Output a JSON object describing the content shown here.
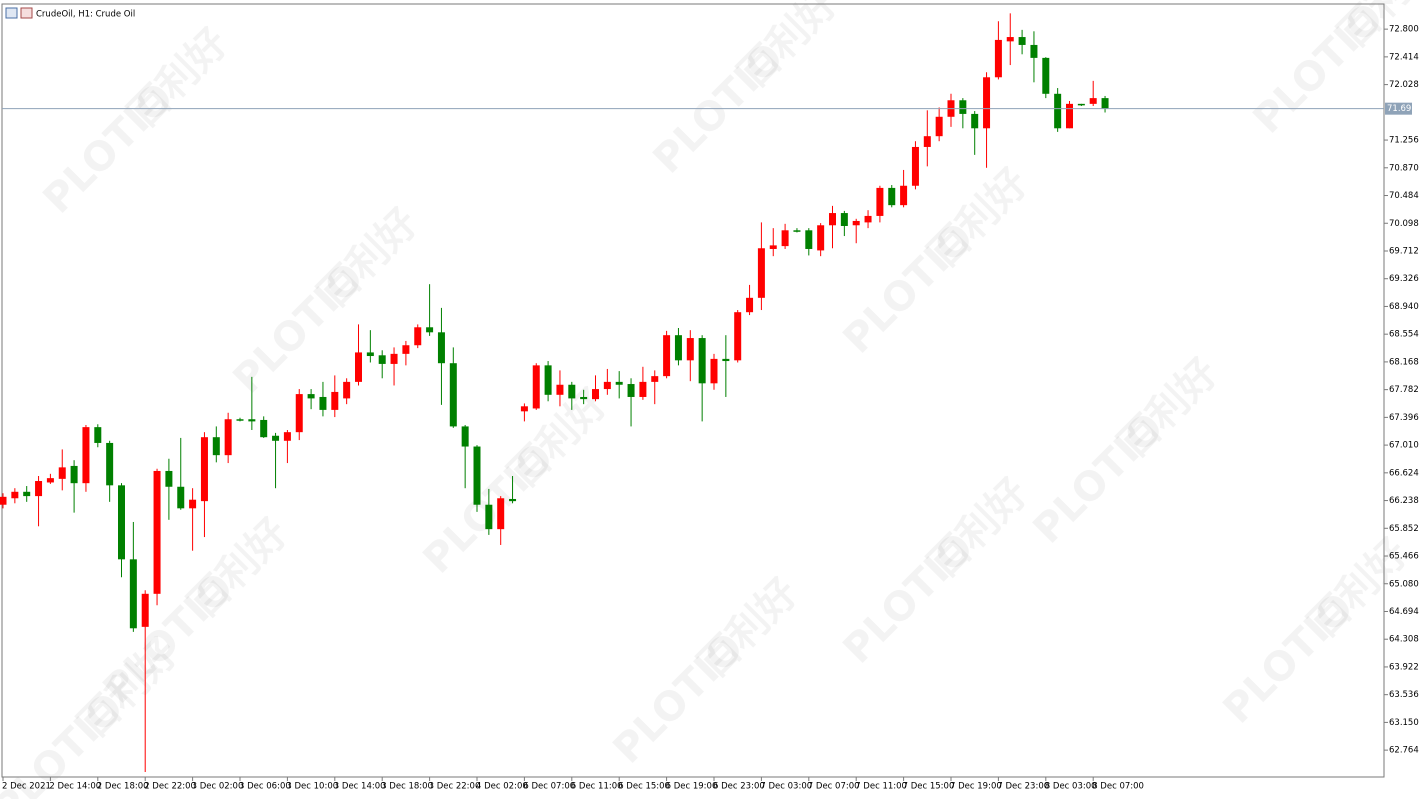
{
  "chart_data": {
    "type": "candlestick",
    "title": "CrudeOil, H1:  Crude Oil",
    "watermark": [
      "PLOTIO",
      "百利好"
    ],
    "up_color": "#ff0000",
    "down_color": "#008000",
    "price_line_color": "#8fa3b8",
    "current_price": 71.693,
    "ylim": [
      62.39,
      73.15
    ],
    "yticks": [
      {
        "value": 72.8,
        "label": "72.800"
      },
      72.414,
      72.028,
      71.256,
      {
        "value": 70.87,
        "label": "70.870"
      },
      70.484,
      70.098,
      69.712,
      69.326,
      {
        "value": 68.94,
        "label": "68.940"
      },
      68.554,
      68.168,
      67.782,
      67.396,
      {
        "value": 67.01,
        "label": "67.010"
      },
      66.624,
      66.238,
      65.852,
      65.466,
      {
        "value": 65.08,
        "label": "65.080"
      },
      64.694,
      64.308,
      63.922,
      63.536,
      {
        "value": 63.15,
        "label": "63.150"
      },
      62.764
    ],
    "categories": [
      "2 Dec 2021",
      null,
      null,
      null,
      "2 Dec 14:00",
      null,
      null,
      null,
      "2 Dec 18:00",
      null,
      null,
      null,
      "2 Dec 22:00",
      null,
      null,
      null,
      "3 Dec 02:00",
      null,
      null,
      null,
      "3 Dec 06:00",
      null,
      null,
      null,
      "3 Dec 10:00",
      null,
      null,
      null,
      "3 Dec 14:00",
      null,
      null,
      null,
      "3 Dec 18:00",
      null,
      null,
      null,
      "3 Dec 22:00",
      null,
      null,
      null,
      "4 Dec 02:00",
      null,
      null,
      null,
      "6 Dec 07:00",
      null,
      null,
      null,
      "6 Dec 11:00",
      null,
      null,
      null,
      "6 Dec 15:00",
      null,
      null,
      null,
      "6 Dec 19:00",
      null,
      null,
      null,
      "6 Dec 23:00",
      null,
      null,
      null,
      "7 Dec 03:00",
      null,
      null,
      null,
      "7 Dec 07:00",
      null,
      null,
      null,
      "7 Dec 11:00",
      null,
      null,
      null,
      "7 Dec 15:00",
      null,
      null,
      null,
      "7 Dec 19:00",
      null,
      null,
      null,
      "7 Dec 23:00",
      null,
      null,
      null,
      "8 Dec 03:00",
      null,
      null,
      null,
      "8 Dec 07:00",
      null
    ],
    "open": [
      66.18,
      66.27,
      66.36,
      66.3,
      66.49,
      66.54,
      66.72,
      66.48,
      67.26,
      67.04,
      66.45,
      65.42,
      64.48,
      64.94,
      66.65,
      66.43,
      66.13,
      66.23,
      67.12,
      66.87,
      67.37,
      67.37,
      67.36,
      67.14,
      67.07,
      67.19,
      67.72,
      67.68,
      67.5,
      67.66,
      67.89,
      68.3,
      68.26,
      68.14,
      68.28,
      68.4,
      68.65,
      68.58,
      68.15,
      67.27,
      66.99,
      66.18,
      65.84,
      66.26,
      67.48,
      67.52,
      68.12,
      67.71,
      67.85,
      67.68,
      67.65,
      67.79,
      67.89,
      67.86,
      67.68,
      67.89,
      67.97,
      68.54,
      68.19,
      68.5,
      67.87,
      68.21,
      68.19,
      68.86,
      69.06,
      69.74,
      69.78,
      70.0,
      70.0,
      69.72,
      70.07,
      70.24,
      70.07,
      70.11,
      70.2,
      70.59,
      70.35,
      70.62,
      71.16,
      71.31,
      71.58,
      71.81,
      71.62,
      71.42,
      72.13,
      72.63,
      72.69,
      72.58,
      72.4,
      71.9,
      71.42,
      71.76,
      71.76,
      71.84
    ],
    "high": [
      66.34,
      66.41,
      66.44,
      66.58,
      66.61,
      66.95,
      66.8,
      67.29,
      67.3,
      67.07,
      66.48,
      65.94,
      64.99,
      66.68,
      66.82,
      67.11,
      66.41,
      67.19,
      67.27,
      67.46,
      67.39,
      67.96,
      67.41,
      67.18,
      67.22,
      67.79,
      67.79,
      67.89,
      67.98,
      67.94,
      68.69,
      68.61,
      68.33,
      68.37,
      68.46,
      68.69,
      69.25,
      68.92,
      68.37,
      67.29,
      67.01,
      66.4,
      66.3,
      66.58,
      67.59,
      68.15,
      68.18,
      68.05,
      67.89,
      67.78,
      67.98,
      68.07,
      68.04,
      67.94,
      68.1,
      68.05,
      68.6,
      68.64,
      68.61,
      68.54,
      68.28,
      68.54,
      68.89,
      69.24,
      70.11,
      70.03,
      70.09,
      70.03,
      70.03,
      70.1,
      70.34,
      70.27,
      70.16,
      70.28,
      70.62,
      70.63,
      70.84,
      71.24,
      71.67,
      71.71,
      71.9,
      71.84,
      71.66,
      72.2,
      72.91,
      73.02,
      72.79,
      72.77,
      72.41,
      71.98,
      71.8,
      71.76,
      72.08,
      71.87
    ],
    "low": [
      66.13,
      66.2,
      66.22,
      65.88,
      66.47,
      66.38,
      66.07,
      66.36,
      66.98,
      66.22,
      65.17,
      64.41,
      62.46,
      64.78,
      65.97,
      66.11,
      65.54,
      65.73,
      66.77,
      66.76,
      67.34,
      67.22,
      67.11,
      66.41,
      66.76,
      67.08,
      67.51,
      67.41,
      67.4,
      67.58,
      67.84,
      68.16,
      67.94,
      67.84,
      68.12,
      68.36,
      68.53,
      67.57,
      67.25,
      66.41,
      66.08,
      65.76,
      65.62,
      66.2,
      67.34,
      67.5,
      67.62,
      67.55,
      67.5,
      67.58,
      67.62,
      67.71,
      67.66,
      67.27,
      67.64,
      67.58,
      67.94,
      68.12,
      67.9,
      67.34,
      67.78,
      67.68,
      68.16,
      68.82,
      68.89,
      69.64,
      69.74,
      69.97,
      69.65,
      69.64,
      69.75,
      69.92,
      69.82,
      70.03,
      70.11,
      70.32,
      70.32,
      70.57,
      70.89,
      71.24,
      71.44,
      71.42,
      71.05,
      70.87,
      72.1,
      72.3,
      72.45,
      72.06,
      71.84,
      71.37,
      71.42,
      71.73,
      71.73,
      71.64
    ],
    "close": [
      66.29,
      66.36,
      66.3,
      66.51,
      66.55,
      66.7,
      66.48,
      67.26,
      67.04,
      66.45,
      65.42,
      64.46,
      64.94,
      66.65,
      66.43,
      66.13,
      66.25,
      67.12,
      66.87,
      67.37,
      67.36,
      67.34,
      67.12,
      67.07,
      67.19,
      67.72,
      67.66,
      67.5,
      67.75,
      67.89,
      68.3,
      68.25,
      68.14,
      68.28,
      68.4,
      68.65,
      68.58,
      68.15,
      67.27,
      66.99,
      66.18,
      65.84,
      66.27,
      66.23,
      67.55,
      68.12,
      67.71,
      67.85,
      67.66,
      67.65,
      67.79,
      67.89,
      67.85,
      67.68,
      67.89,
      67.97,
      68.54,
      68.19,
      68.5,
      67.87,
      68.21,
      68.18,
      68.86,
      69.06,
      69.75,
      69.79,
      70.0,
      69.99,
      69.74,
      70.07,
      70.24,
      70.06,
      70.13,
      70.2,
      70.59,
      70.35,
      70.62,
      71.16,
      71.31,
      71.58,
      71.81,
      71.62,
      71.42,
      72.13,
      72.65,
      72.69,
      72.58,
      72.4,
      71.9,
      71.42,
      71.76,
      71.74,
      71.84,
      71.69
    ]
  }
}
